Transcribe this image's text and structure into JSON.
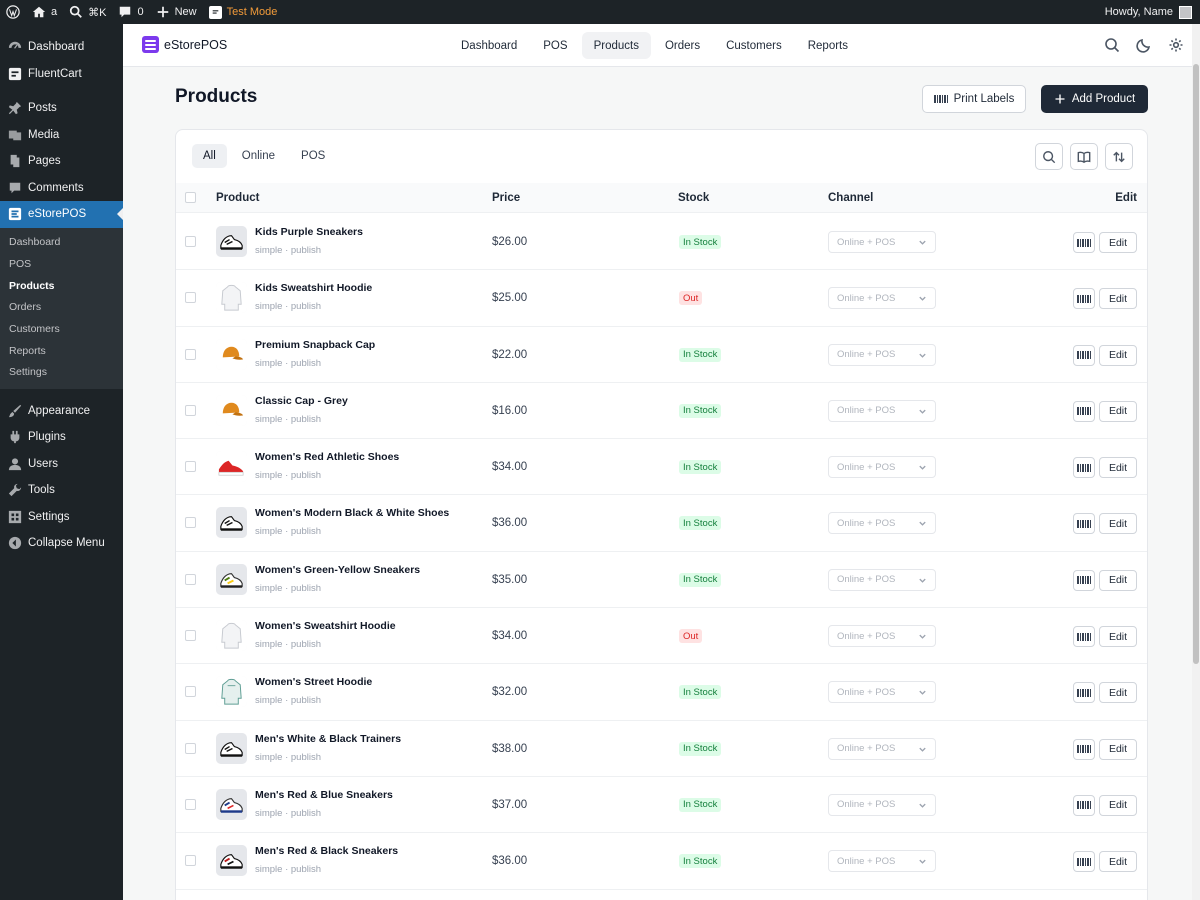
{
  "admin_bar": {
    "site_name": "a",
    "search_shortcut": "⌘K",
    "comments_count": "0",
    "new_label": "New",
    "test_mode_label": "Test Mode",
    "howdy": "Howdy, Name"
  },
  "wp_menu": {
    "items_top": [
      {
        "label": "Dashboard",
        "icon": "dashboard-icon"
      },
      {
        "label": "FluentCart",
        "icon": "fluentcart-icon"
      }
    ],
    "items_mid": [
      {
        "label": "Posts",
        "icon": "pin-icon"
      },
      {
        "label": "Media",
        "icon": "media-icon"
      },
      {
        "label": "Pages",
        "icon": "pages-icon"
      },
      {
        "label": "Comments",
        "icon": "comments-icon"
      }
    ],
    "current": {
      "label": "eStorePOS",
      "icon": "estorepos-icon"
    },
    "submenu": [
      "Dashboard",
      "POS",
      "Products",
      "Orders",
      "Customers",
      "Reports",
      "Settings"
    ],
    "submenu_active_index": 2,
    "items_bottom": [
      {
        "label": "Appearance",
        "icon": "brush-icon"
      },
      {
        "label": "Plugins",
        "icon": "plugin-icon"
      },
      {
        "label": "Users",
        "icon": "user-icon"
      },
      {
        "label": "Tools",
        "icon": "wrench-icon"
      },
      {
        "label": "Settings",
        "icon": "settings-icon"
      },
      {
        "label": "Collapse Menu",
        "icon": "collapse-icon"
      }
    ]
  },
  "app": {
    "brand": "eStorePOS",
    "nav": [
      "Dashboard",
      "POS",
      "Products",
      "Orders",
      "Customers",
      "Reports"
    ],
    "nav_active_index": 2,
    "page_title": "Products",
    "print_labels": "Print Labels",
    "add_product": "Add Product",
    "filter_tabs": [
      "All",
      "Online",
      "POS"
    ],
    "filter_active_index": 0,
    "columns": {
      "product": "Product",
      "price": "Price",
      "stock": "Stock",
      "channel": "Channel",
      "edit": "Edit"
    },
    "edit_label": "Edit",
    "channel_value": "Online + POS",
    "products": [
      {
        "name": "Kids Purple Sneakers",
        "meta": "simple · publish",
        "price": "$26.00",
        "stock": "In Stock",
        "in_stock": true,
        "thumb": "sneaker-bw"
      },
      {
        "name": "Kids Sweatshirt Hoodie",
        "meta": "simple · publish",
        "price": "$25.00",
        "stock": "Out",
        "in_stock": false,
        "thumb": "hoodie-white"
      },
      {
        "name": "Premium Snapback Cap",
        "meta": "simple · publish",
        "price": "$22.00",
        "stock": "In Stock",
        "in_stock": true,
        "thumb": "cap-orange"
      },
      {
        "name": "Classic Cap - Grey",
        "meta": "simple · publish",
        "price": "$16.00",
        "stock": "In Stock",
        "in_stock": true,
        "thumb": "cap-orange"
      },
      {
        "name": "Women's Red Athletic Shoes",
        "meta": "simple · publish",
        "price": "$34.00",
        "stock": "In Stock",
        "in_stock": true,
        "thumb": "shoe-red"
      },
      {
        "name": "Women's Modern Black & White Shoes",
        "meta": "simple · publish",
        "price": "$36.00",
        "stock": "In Stock",
        "in_stock": true,
        "thumb": "sneaker-bw"
      },
      {
        "name": "Women's Green-Yellow Sneakers",
        "meta": "simple · publish",
        "price": "$35.00",
        "stock": "In Stock",
        "in_stock": true,
        "thumb": "sneaker-green"
      },
      {
        "name": "Women's Sweatshirt Hoodie",
        "meta": "simple · publish",
        "price": "$34.00",
        "stock": "Out",
        "in_stock": false,
        "thumb": "hoodie-white"
      },
      {
        "name": "Women's Street Hoodie",
        "meta": "simple · publish",
        "price": "$32.00",
        "stock": "In Stock",
        "in_stock": true,
        "thumb": "hoodie-teal"
      },
      {
        "name": "Men's White & Black Trainers",
        "meta": "simple · publish",
        "price": "$38.00",
        "stock": "In Stock",
        "in_stock": true,
        "thumb": "sneaker-bw"
      },
      {
        "name": "Men's Red & Blue Sneakers",
        "meta": "simple · publish",
        "price": "$37.00",
        "stock": "In Stock",
        "in_stock": true,
        "thumb": "sneaker-blue"
      },
      {
        "name": "Men's Red & Black Sneakers",
        "meta": "simple · publish",
        "price": "$36.00",
        "stock": "In Stock",
        "in_stock": true,
        "thumb": "sneaker-red-black"
      }
    ]
  },
  "colors": {
    "wp_admin_bg": "#1d2327",
    "wp_current": "#2271b1",
    "brand_purple": "#7c3aed",
    "test_mode": "#f29b3a",
    "in_stock": "#15803d",
    "out_stock": "#dc2626",
    "primary_button": "#1f2937"
  }
}
